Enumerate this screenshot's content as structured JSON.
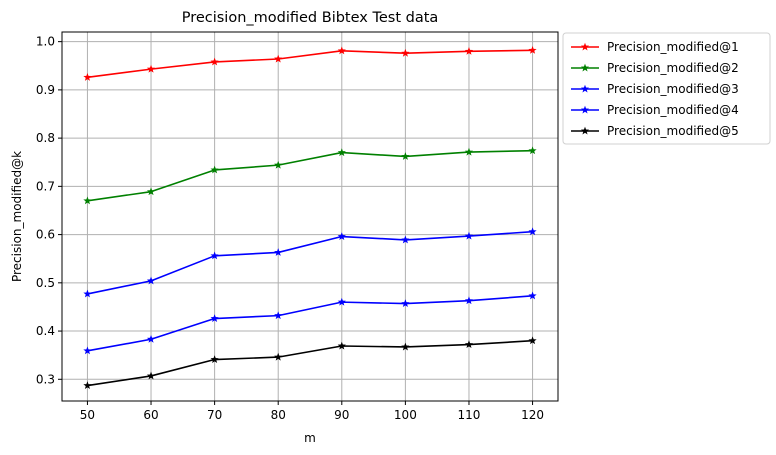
{
  "chart_data": {
    "type": "line",
    "title": "Precision_modified Bibtex Test data",
    "xlabel": "m",
    "ylabel": "Precision_modified@k",
    "x": [
      50,
      60,
      70,
      80,
      90,
      100,
      110,
      120
    ],
    "xlim": [
      46,
      124
    ],
    "ylim": [
      0.255,
      1.02
    ],
    "xticks": [
      "50",
      "60",
      "70",
      "80",
      "90",
      "100",
      "110",
      "120"
    ],
    "yticks": [
      "0.3",
      "0.4",
      "0.5",
      "0.6",
      "0.7",
      "0.8",
      "0.9",
      "1.0"
    ],
    "grid": true,
    "legend_position": "outside-upper-right",
    "marker": "star",
    "series": [
      {
        "name": "Precision_modified@1",
        "color": "#ff0000",
        "values": [
          0.926,
          0.943,
          0.958,
          0.964,
          0.981,
          0.976,
          0.98,
          0.982
        ]
      },
      {
        "name": "Precision_modified@2",
        "color": "#008000",
        "values": [
          0.67,
          0.689,
          0.734,
          0.744,
          0.77,
          0.762,
          0.771,
          0.774
        ]
      },
      {
        "name": "Precision_modified@3",
        "color": "#0000ff",
        "values": [
          0.477,
          0.504,
          0.556,
          0.563,
          0.596,
          0.589,
          0.597,
          0.606
        ]
      },
      {
        "name": "Precision_modified@4",
        "color": "#0000ff",
        "values": [
          0.359,
          0.383,
          0.426,
          0.432,
          0.46,
          0.457,
          0.463,
          0.473
        ]
      },
      {
        "name": "Precision_modified@5",
        "color": "#000000",
        "values": [
          0.287,
          0.307,
          0.341,
          0.346,
          0.369,
          0.367,
          0.372,
          0.38
        ]
      }
    ]
  }
}
